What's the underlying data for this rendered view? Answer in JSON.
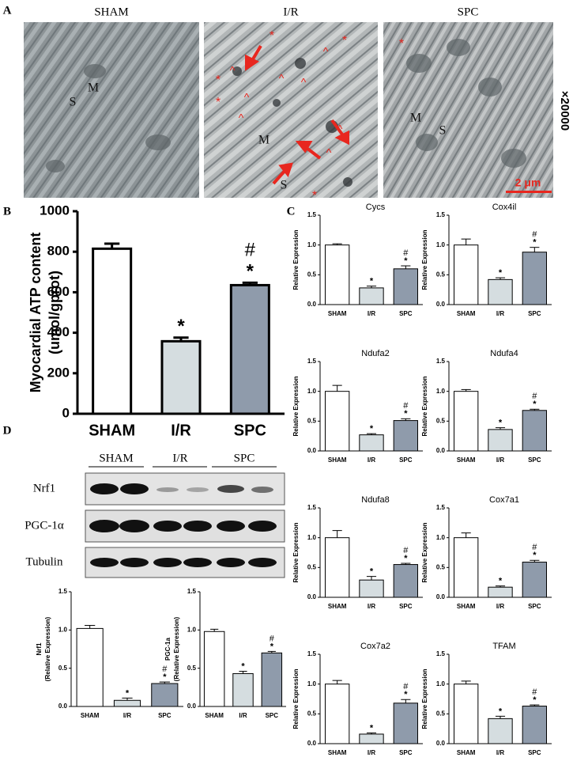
{
  "panel_labels": [
    "A",
    "B",
    "C",
    "D"
  ],
  "micrographs": [
    {
      "title": "SHAM",
      "labels": [
        "S",
        "M"
      ]
    },
    {
      "title": "I/R",
      "labels": [
        "M",
        "S"
      ],
      "markers": [
        "^",
        "*"
      ]
    },
    {
      "title": "SPC",
      "labels": [
        "M",
        "S"
      ],
      "markers": [
        "*"
      ]
    }
  ],
  "magnification": "×20000",
  "scale_bar": "2 μm",
  "blot": {
    "groups": [
      "SHAM",
      "I/R",
      "SPC"
    ],
    "rows": [
      "Nrf1",
      "PGC-1α",
      "Tubulin"
    ]
  },
  "chart_data": [
    {
      "type": "bar",
      "ylabel": [
        "Myocardial ATP content",
        "(umol/gprot)"
      ],
      "categories": [
        "SHAM",
        "I/R",
        "SPC"
      ],
      "values": [
        815,
        358,
        635
      ],
      "errors": [
        25,
        18,
        12
      ],
      "colors": [
        "#ffffff",
        "#d5dde0",
        "#8f9bab"
      ],
      "ylim": [
        0,
        1000
      ],
      "yticks": [
        0,
        200,
        400,
        600,
        800,
        1000
      ],
      "annotations": [
        {
          "x": "I/R",
          "text": "*"
        },
        {
          "x": "SPC",
          "text": "*"
        },
        {
          "x": "SPC",
          "text": "#"
        }
      ]
    },
    {
      "type": "bar",
      "title": "Cycs",
      "ylabel": [
        "Relative Expression"
      ],
      "categories": [
        "SHAM",
        "I/R",
        "SPC"
      ],
      "values": [
        1.0,
        0.28,
        0.6
      ],
      "errors": [
        0.02,
        0.03,
        0.05
      ],
      "colors": [
        "#ffffff",
        "#d5dde0",
        "#8f9bab"
      ],
      "ylim": [
        0,
        1.5
      ],
      "yticks": [
        {
          "value": 0,
          "label": "0.0"
        },
        0.5,
        {
          "value": 1,
          "label": "1.0"
        },
        1.5
      ],
      "annotations": [
        {
          "x": "I/R",
          "text": "*"
        },
        {
          "x": "SPC",
          "text": "*"
        },
        {
          "x": "SPC",
          "text": "#"
        }
      ]
    },
    {
      "type": "bar",
      "title": "Cox4il",
      "ylabel": [
        "Relative Expression"
      ],
      "categories": [
        "SHAM",
        "I/R",
        "SPC"
      ],
      "values": [
        1.0,
        0.42,
        0.88
      ],
      "errors": [
        0.1,
        0.03,
        0.08
      ],
      "colors": [
        "#ffffff",
        "#d5dde0",
        "#8f9bab"
      ],
      "ylim": [
        0,
        1.5
      ],
      "yticks": [
        {
          "value": 0,
          "label": "0.0"
        },
        0.5,
        {
          "value": 1,
          "label": "1.0"
        },
        1.5
      ],
      "annotations": [
        {
          "x": "I/R",
          "text": "*"
        },
        {
          "x": "SPC",
          "text": "*"
        },
        {
          "x": "SPC",
          "text": "#"
        }
      ]
    },
    {
      "type": "bar",
      "title": "Ndufa2",
      "ylabel": [
        "Relative Expression"
      ],
      "categories": [
        "SHAM",
        "I/R",
        "SPC"
      ],
      "values": [
        1.0,
        0.27,
        0.51
      ],
      "errors": [
        0.1,
        0.02,
        0.03
      ],
      "colors": [
        "#ffffff",
        "#d5dde0",
        "#8f9bab"
      ],
      "ylim": [
        0,
        1.5
      ],
      "yticks": [
        {
          "value": 0,
          "label": "0.0"
        },
        0.5,
        {
          "value": 1,
          "label": "1.0"
        },
        1.5
      ],
      "annotations": [
        {
          "x": "I/R",
          "text": "*"
        },
        {
          "x": "SPC",
          "text": "*"
        },
        {
          "x": "SPC",
          "text": "#"
        }
      ]
    },
    {
      "type": "bar",
      "title": "Ndufa4",
      "ylabel": [
        "Relative Expression"
      ],
      "categories": [
        "SHAM",
        "I/R",
        "SPC"
      ],
      "values": [
        1.0,
        0.36,
        0.68
      ],
      "errors": [
        0.03,
        0.03,
        0.02
      ],
      "colors": [
        "#ffffff",
        "#d5dde0",
        "#8f9bab"
      ],
      "ylim": [
        0,
        1.5
      ],
      "yticks": [
        {
          "value": 0,
          "label": "0.0"
        },
        0.5,
        {
          "value": 1,
          "label": "1.0"
        },
        1.5
      ],
      "annotations": [
        {
          "x": "I/R",
          "text": "*"
        },
        {
          "x": "SPC",
          "text": "*"
        },
        {
          "x": "SPC",
          "text": "#"
        }
      ]
    },
    {
      "type": "bar",
      "title": "Ndufa8",
      "ylabel": [
        "Relative Expression"
      ],
      "categories": [
        "SHAM",
        "I/R",
        "SPC"
      ],
      "values": [
        1.0,
        0.29,
        0.55
      ],
      "errors": [
        0.12,
        0.06,
        0.02
      ],
      "colors": [
        "#ffffff",
        "#d5dde0",
        "#8f9bab"
      ],
      "ylim": [
        0,
        1.5
      ],
      "yticks": [
        {
          "value": 0,
          "label": "0.0"
        },
        0.5,
        {
          "value": 1,
          "label": "1.0"
        },
        1.5
      ],
      "annotations": [
        {
          "x": "I/R",
          "text": "*"
        },
        {
          "x": "SPC",
          "text": "*"
        },
        {
          "x": "SPC",
          "text": "#"
        }
      ]
    },
    {
      "type": "bar",
      "title": "Cox7a1",
      "ylabel": [
        "Relative Expression"
      ],
      "categories": [
        "SHAM",
        "I/R",
        "SPC"
      ],
      "values": [
        1.0,
        0.17,
        0.59
      ],
      "errors": [
        0.08,
        0.02,
        0.03
      ],
      "colors": [
        "#ffffff",
        "#d5dde0",
        "#8f9bab"
      ],
      "ylim": [
        0,
        1.5
      ],
      "yticks": [
        {
          "value": 0,
          "label": "0.0"
        },
        0.5,
        {
          "value": 1,
          "label": "1.0"
        },
        1.5
      ],
      "annotations": [
        {
          "x": "I/R",
          "text": "*"
        },
        {
          "x": "SPC",
          "text": "*"
        },
        {
          "x": "SPC",
          "text": "#"
        }
      ]
    },
    {
      "type": "bar",
      "title": "Cox7a2",
      "ylabel": [
        "Relative Expression"
      ],
      "categories": [
        "SHAM",
        "I/R",
        "SPC"
      ],
      "values": [
        1.0,
        0.16,
        0.68
      ],
      "errors": [
        0.06,
        0.02,
        0.06
      ],
      "colors": [
        "#ffffff",
        "#d5dde0",
        "#8f9bab"
      ],
      "ylim": [
        0,
        1.5
      ],
      "yticks": [
        {
          "value": 0,
          "label": "0.0"
        },
        0.5,
        {
          "value": 1,
          "label": "1.0"
        },
        1.5
      ],
      "annotations": [
        {
          "x": "I/R",
          "text": "*"
        },
        {
          "x": "SPC",
          "text": "*"
        },
        {
          "x": "SPC",
          "text": "#"
        }
      ]
    },
    {
      "type": "bar",
      "title": "TFAM",
      "ylabel": [
        "Relative Expression"
      ],
      "categories": [
        "SHAM",
        "I/R",
        "SPC"
      ],
      "values": [
        1.0,
        0.42,
        0.63
      ],
      "errors": [
        0.05,
        0.04,
        0.02
      ],
      "colors": [
        "#ffffff",
        "#d5dde0",
        "#8f9bab"
      ],
      "ylim": [
        0,
        1.5
      ],
      "yticks": [
        {
          "value": 0,
          "label": "0.0"
        },
        0.5,
        {
          "value": 1,
          "label": "1.0"
        },
        1.5
      ],
      "annotations": [
        {
          "x": "I/R",
          "text": "*"
        },
        {
          "x": "SPC",
          "text": "*"
        },
        {
          "x": "SPC",
          "text": "#"
        }
      ]
    },
    {
      "type": "bar",
      "ylabel": [
        "Nrf1",
        "(Relative Expression)"
      ],
      "categories": [
        "SHAM",
        "I/R",
        "SPC"
      ],
      "values": [
        1.02,
        0.08,
        0.3
      ],
      "errors": [
        0.04,
        0.03,
        0.02
      ],
      "colors": [
        "#ffffff",
        "#d5dde0",
        "#8f9bab"
      ],
      "ylim": [
        0,
        1.5
      ],
      "yticks": [
        {
          "value": 0,
          "label": "0.0"
        },
        0.5,
        {
          "value": 1,
          "label": "1.0"
        },
        1.5
      ],
      "annotations": [
        {
          "x": "I/R",
          "text": "*"
        },
        {
          "x": "SPC",
          "text": "*"
        },
        {
          "x": "SPC",
          "text": "#"
        }
      ]
    },
    {
      "type": "bar",
      "ylabel": [
        "PGC-1a",
        "(Relative Expression)"
      ],
      "categories": [
        "SHAM",
        "I/R",
        "SPC"
      ],
      "values": [
        0.98,
        0.43,
        0.7
      ],
      "errors": [
        0.03,
        0.03,
        0.02
      ],
      "colors": [
        "#ffffff",
        "#d5dde0",
        "#8f9bab"
      ],
      "ylim": [
        0,
        1.5
      ],
      "yticks": [
        {
          "value": 0,
          "label": "0.0"
        },
        0.5,
        {
          "value": 1,
          "label": "1.0"
        },
        1.5
      ],
      "annotations": [
        {
          "x": "I/R",
          "text": "*"
        },
        {
          "x": "SPC",
          "text": "*"
        },
        {
          "x": "SPC",
          "text": "#"
        }
      ]
    }
  ]
}
